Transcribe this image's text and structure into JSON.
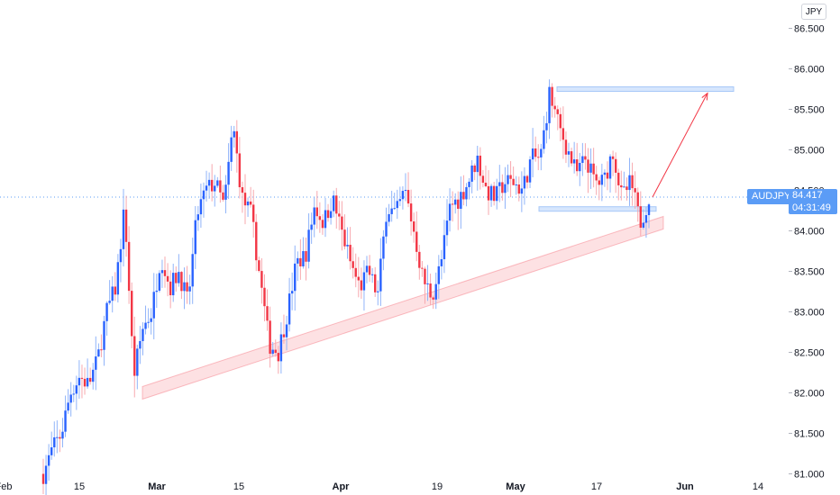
{
  "chart_data": {
    "type": "candlestick",
    "symbol": "AUDJPY",
    "currency": "JPY",
    "last_price": "84.417",
    "countdown": "04:31:49",
    "y_axis": {
      "ticks": [
        "86.500",
        "86.000",
        "85.500",
        "85.000",
        "84.500",
        "84.000",
        "83.500",
        "83.000",
        "82.500",
        "82.000",
        "81.500",
        "81.000"
      ],
      "range": [
        80.93,
        86.73
      ]
    },
    "x_axis": {
      "ticks": [
        "Feb",
        "15",
        "Mar",
        "15",
        "Apr",
        "19",
        "May",
        "17",
        "Jun",
        "14"
      ]
    },
    "price_path": [
      81.0,
      81.3,
      81.5,
      82.0,
      82.2,
      82.1,
      82.4,
      83.0,
      83.3,
      84.3,
      82.2,
      82.8,
      83.0,
      83.7,
      83.3,
      83.5,
      83.1,
      84.2,
      84.5,
      84.6,
      84.3,
      85.3,
      84.4,
      84.2,
      83.4,
      82.6,
      82.5,
      83.0,
      83.6,
      83.7,
      84.3,
      84.1,
      84.4,
      84.0,
      83.6,
      83.3,
      83.5,
      83.2,
      84.3,
      84.2,
      84.5,
      84.0,
      83.4,
      83.2,
      83.6,
      84.3,
      84.4,
      84.6,
      84.9,
      84.5,
      84.4,
      84.6,
      84.6,
      84.5,
      84.9,
      84.9,
      85.7,
      85.3,
      85.0,
      84.7,
      84.9,
      84.6,
      84.6,
      85.0,
      84.4,
      84.6,
      84.1,
      84.4
    ],
    "drawings": {
      "support_channel_start": [
        82.0,
        "late Feb"
      ],
      "support_channel_end": [
        84.1,
        "end May"
      ],
      "resistance_zone": 85.75,
      "support_zone": 84.27,
      "projection_target": 85.7
    }
  }
}
